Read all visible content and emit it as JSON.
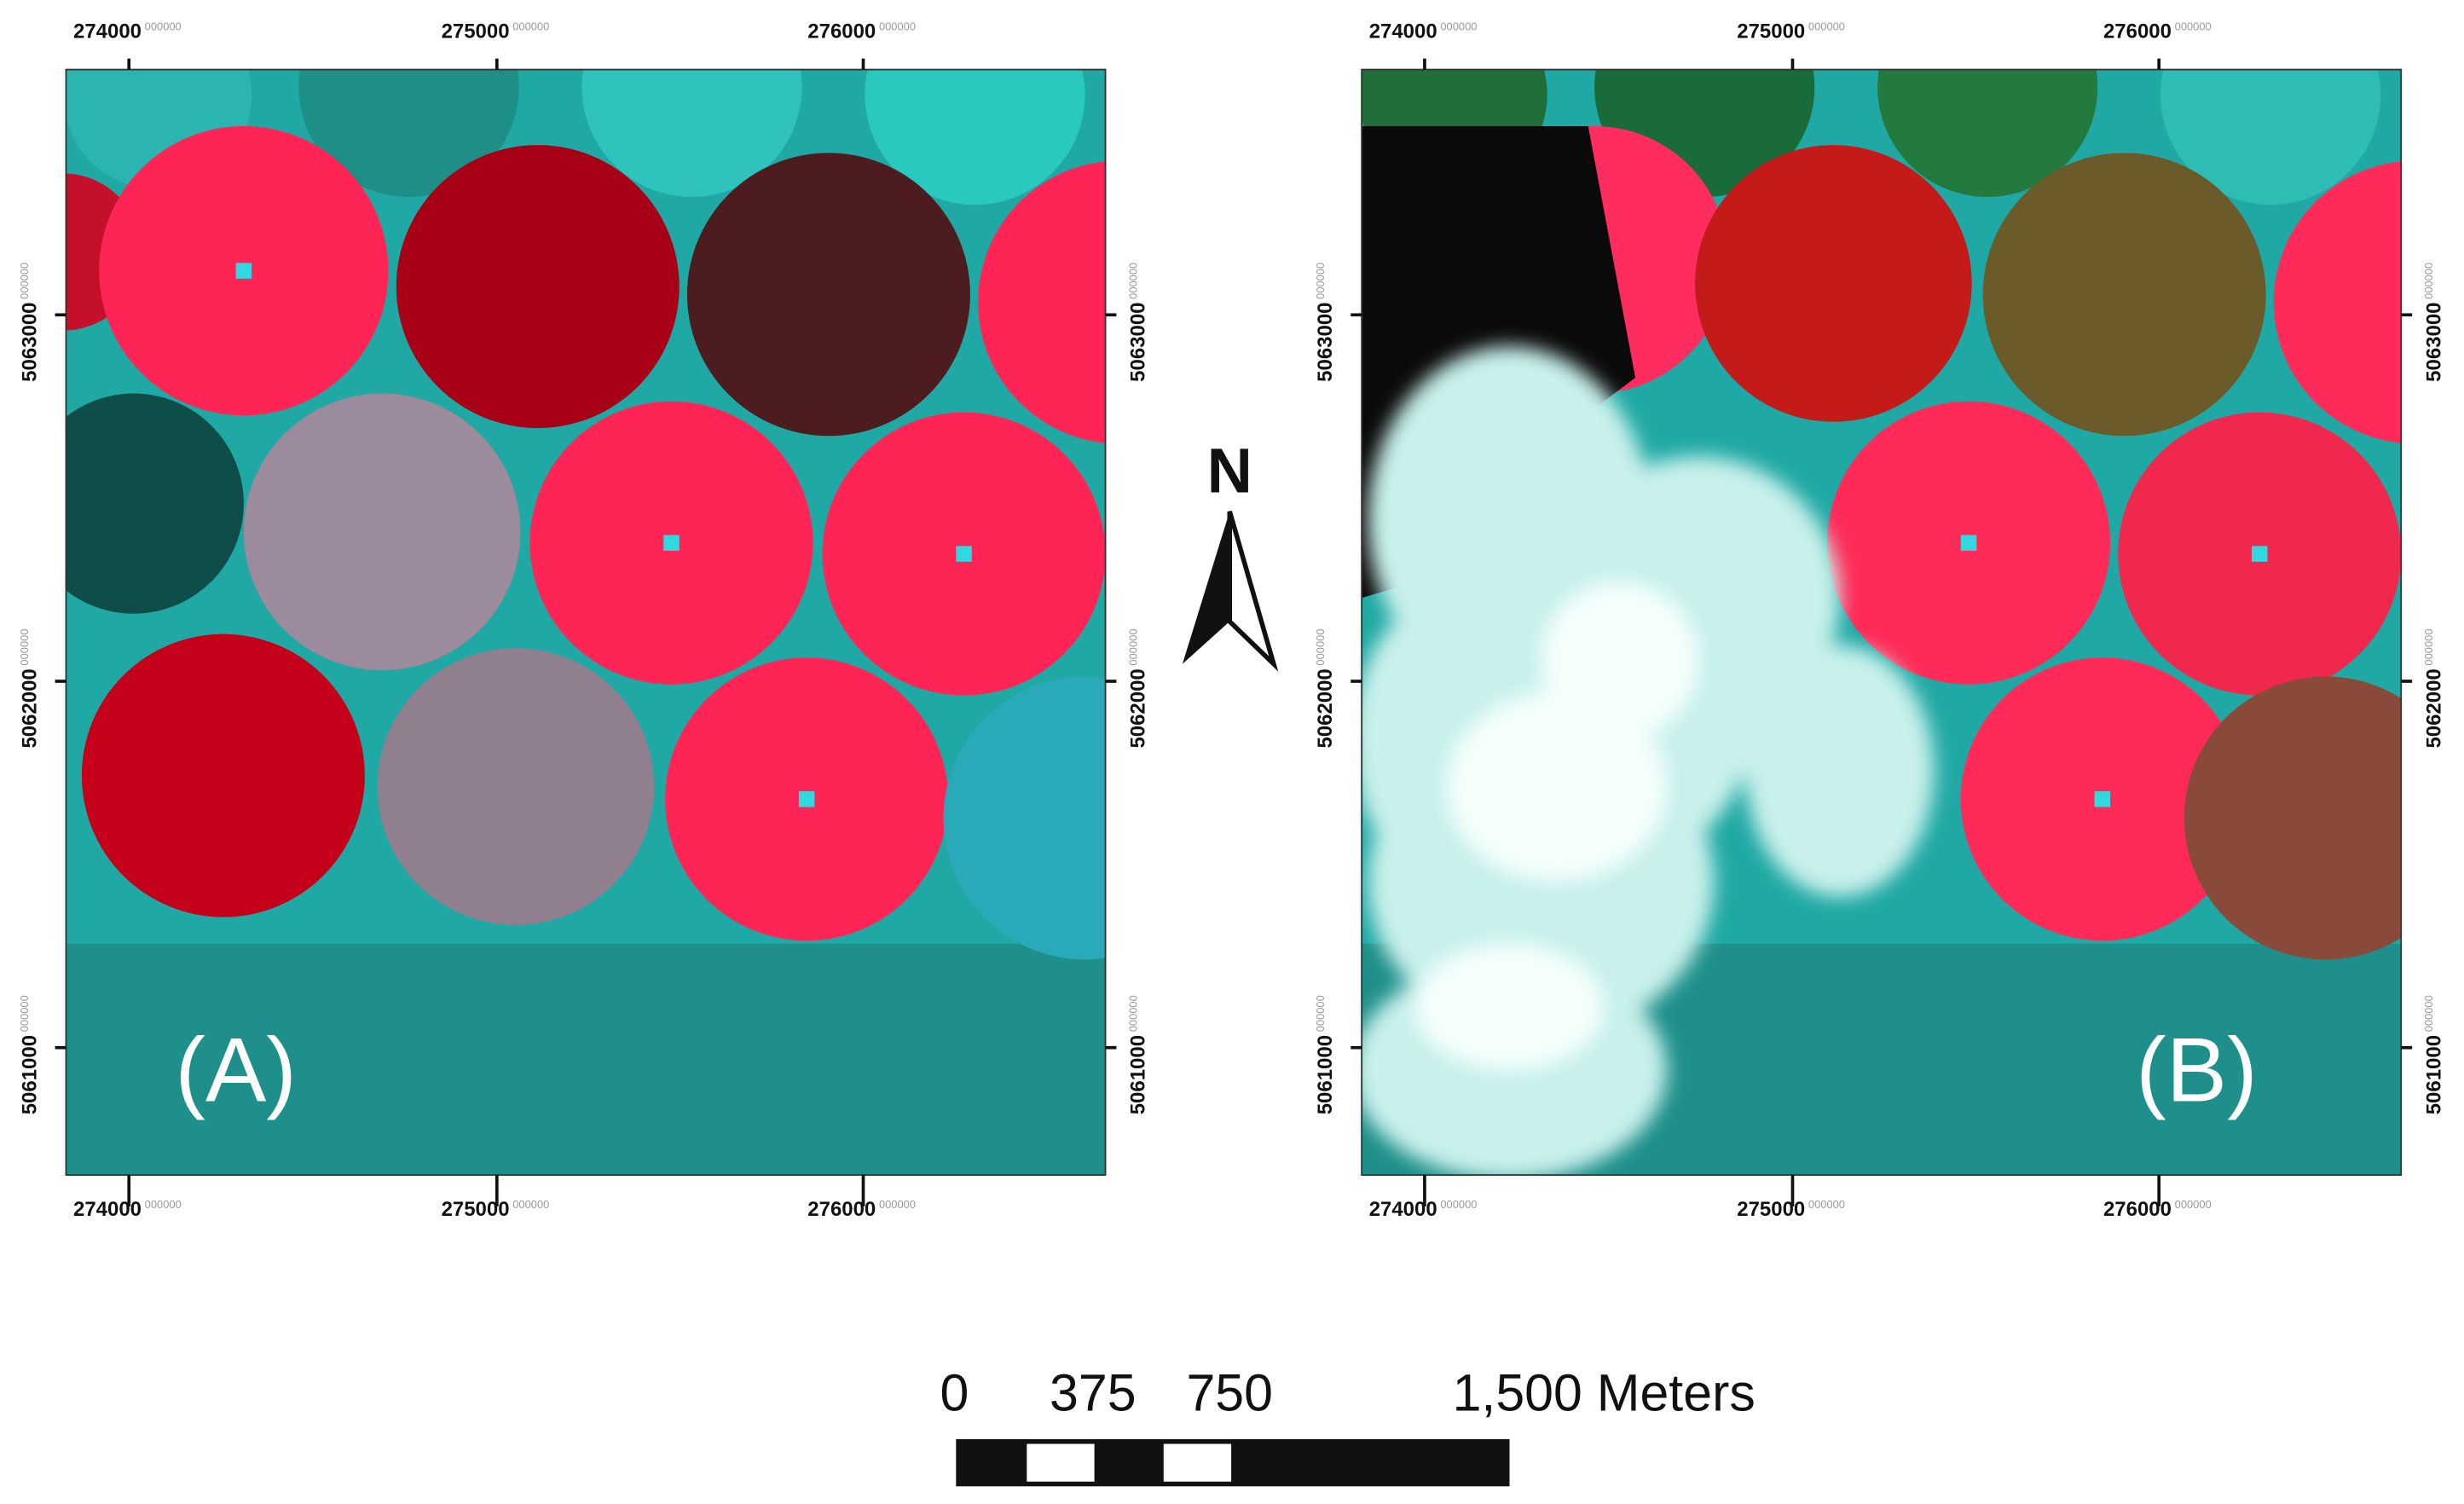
{
  "panels": [
    {
      "label": "(A)",
      "x_ticks": [
        "274000",
        "275000",
        "276000"
      ],
      "y_ticks": [
        "5063000",
        "5062000",
        "5061000"
      ],
      "tick_suffix": "000000"
    },
    {
      "label": "(B)",
      "x_ticks": [
        "274000",
        "275000",
        "276000"
      ],
      "y_ticks": [
        "5063000",
        "5062000",
        "5061000"
      ],
      "tick_suffix": "000000"
    }
  ],
  "north_arrow": "N",
  "scale_bar": {
    "labels": [
      "0",
      "375",
      "750",
      "1,500 Meters"
    ]
  }
}
